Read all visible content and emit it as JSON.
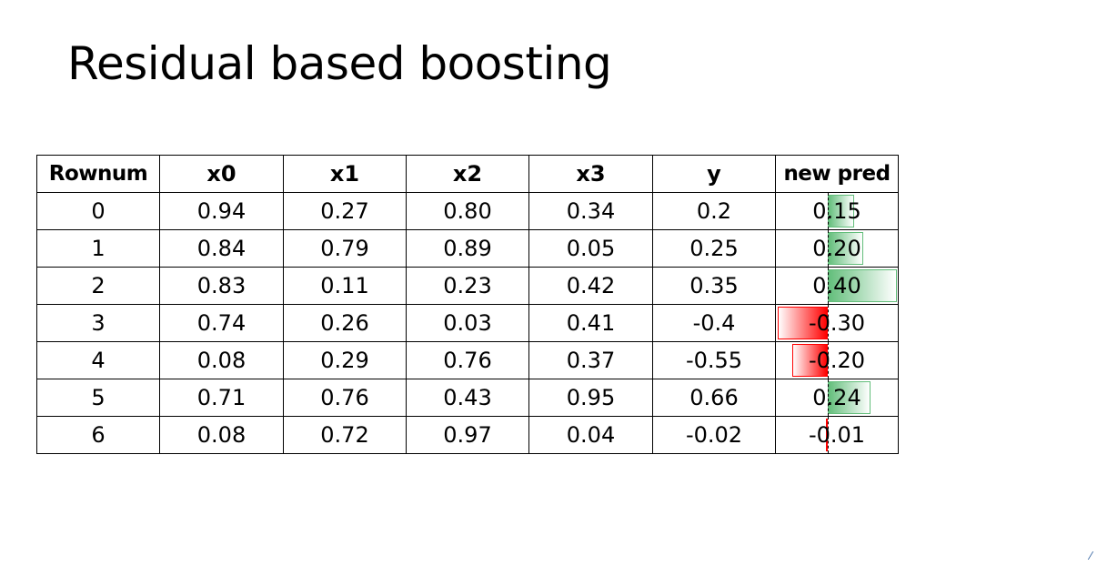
{
  "slide": {
    "title": "Residual based boosting"
  },
  "table": {
    "headers": [
      "Rownum",
      "x0",
      "x1",
      "x2",
      "x3",
      "y",
      "new pred"
    ],
    "rows": [
      {
        "rownum": "0",
        "x0": "0.94",
        "x1": "0.27",
        "x2": "0.80",
        "x3": "0.34",
        "y": "0.2",
        "new_pred": "0.15",
        "pred_value": 0.15
      },
      {
        "rownum": "1",
        "x0": "0.84",
        "x1": "0.79",
        "x2": "0.89",
        "x3": "0.05",
        "y": "0.25",
        "new_pred": "0.20",
        "pred_value": 0.2
      },
      {
        "rownum": "2",
        "x0": "0.83",
        "x1": "0.11",
        "x2": "0.23",
        "x3": "0.42",
        "y": "0.35",
        "new_pred": "0.40",
        "pred_value": 0.4
      },
      {
        "rownum": "3",
        "x0": "0.74",
        "x1": "0.26",
        "x2": "0.03",
        "x3": "0.41",
        "y": "-0.4",
        "new_pred": "-0.30",
        "pred_value": -0.3
      },
      {
        "rownum": "4",
        "x0": "0.08",
        "x1": "0.29",
        "x2": "0.76",
        "x3": "0.37",
        "y": "-0.55",
        "new_pred": "-0.20",
        "pred_value": -0.2
      },
      {
        "rownum": "5",
        "x0": "0.71",
        "x1": "0.76",
        "x2": "0.43",
        "x3": "0.95",
        "y": "0.66",
        "new_pred": "0.24",
        "pred_value": 0.24
      },
      {
        "rownum": "6",
        "x0": "0.08",
        "x1": "0.72",
        "x2": "0.97",
        "x3": "0.04",
        "y": "-0.02",
        "new_pred": "-0.01",
        "pred_value": -0.01
      }
    ],
    "databar_colors": {
      "positive": "#63be7b",
      "negative": "#ff0000"
    }
  },
  "corner_mark": "⁄"
}
